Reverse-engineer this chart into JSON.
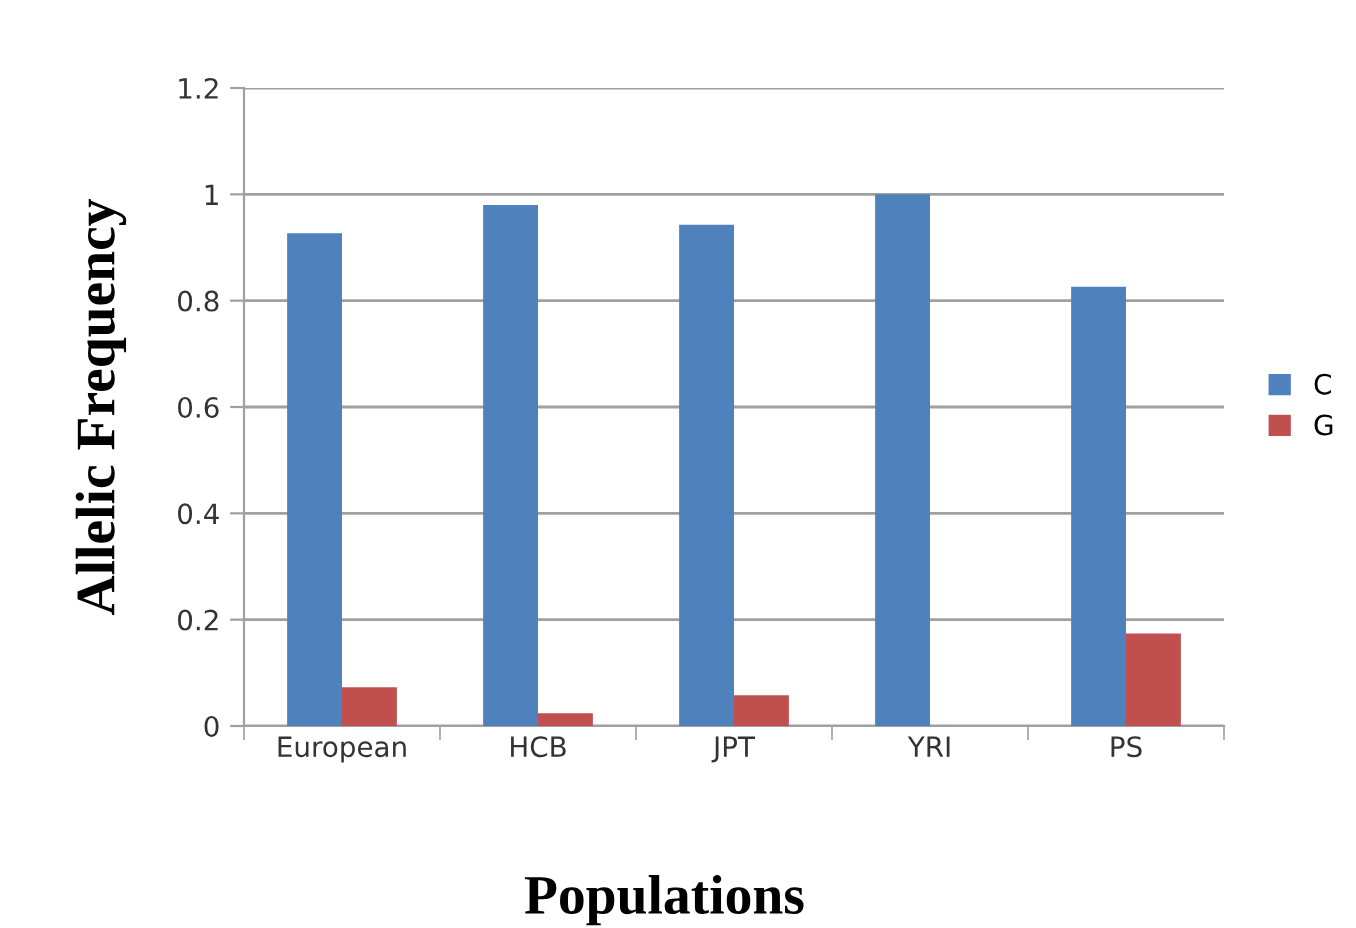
{
  "chart_data": {
    "type": "bar",
    "xlabel": "Populations",
    "ylabel": "Allelic Frequency",
    "categories": [
      "European",
      "HCB",
      "JPT",
      "YRI",
      "PS"
    ],
    "series": [
      {
        "name": "C",
        "color": "#4f81bd",
        "values": [
          0.927,
          0.98,
          0.943,
          1.0,
          0.826
        ]
      },
      {
        "name": "G",
        "color": "#c0504d",
        "values": [
          0.073,
          0.024,
          0.058,
          0,
          0.174
        ]
      }
    ],
    "ylim": [
      0,
      1.2
    ],
    "yticks": [
      0,
      {
        "value": 0.2,
        "label": "0.2"
      },
      {
        "value": 0.4,
        "label": "0.4"
      },
      {
        "value": 0.6,
        "label": "0.6"
      },
      {
        "value": 0.8,
        "label": "0.8"
      },
      1,
      {
        "value": 1.2,
        "label": "1.2"
      }
    ],
    "grid": "y",
    "legend": "right"
  }
}
